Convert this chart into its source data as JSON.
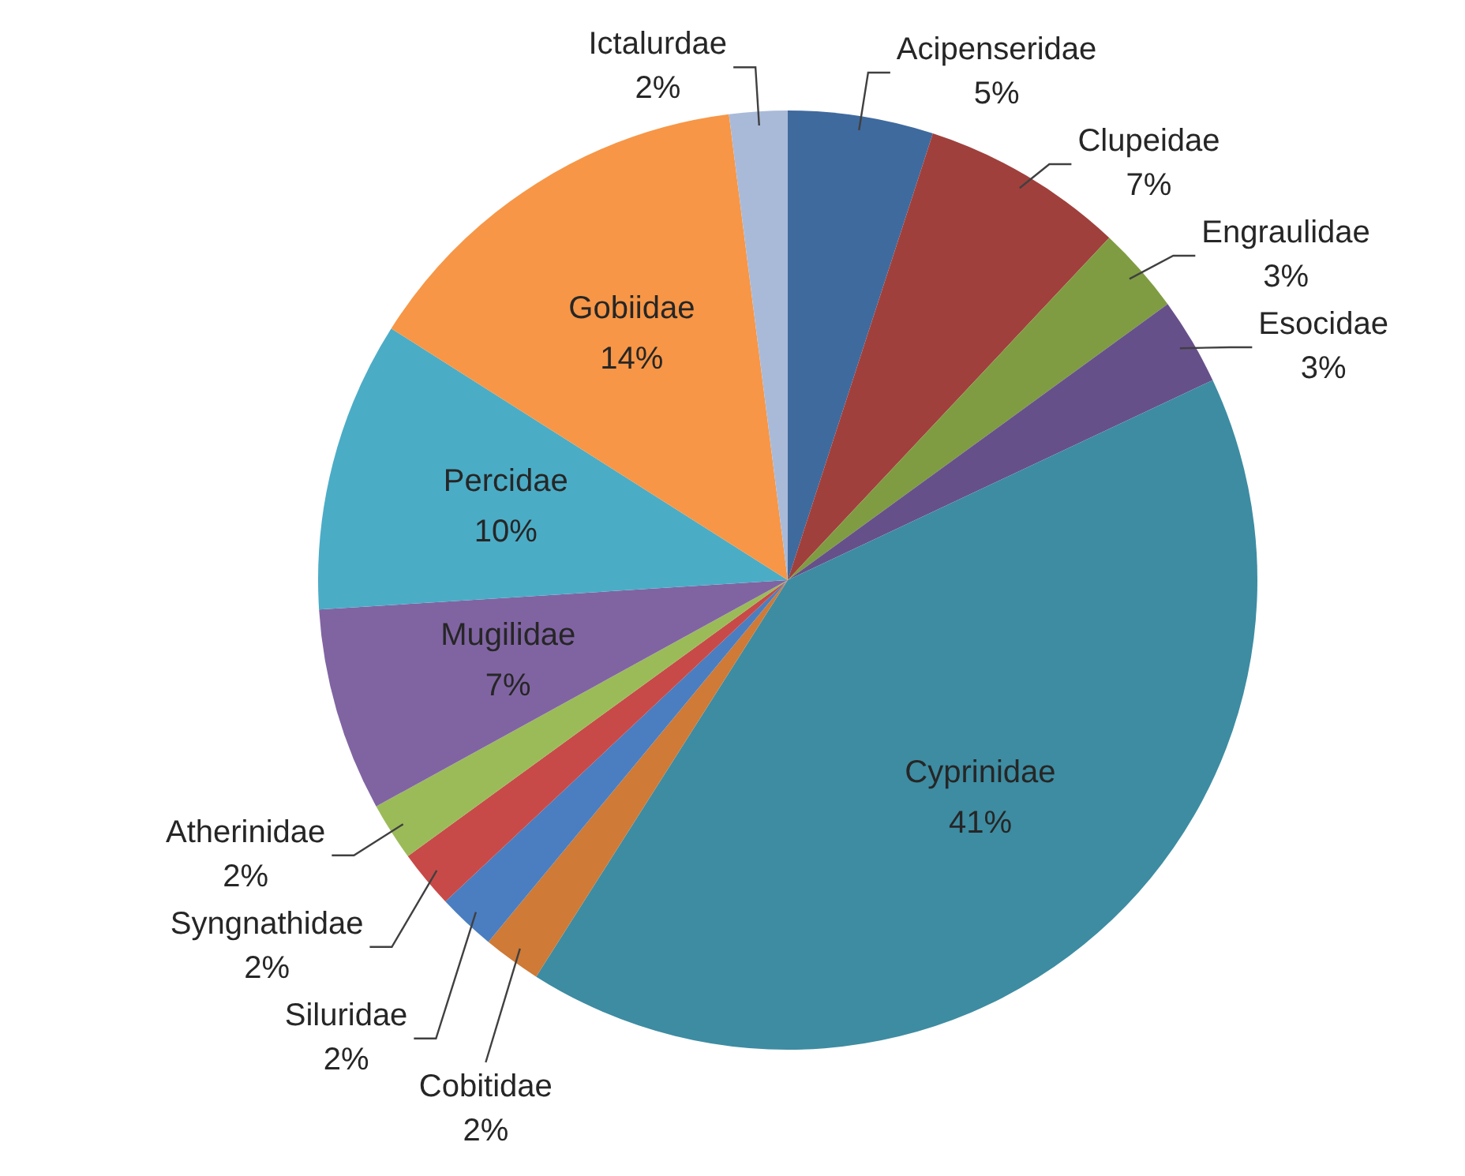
{
  "chart_data": {
    "type": "pie",
    "categories": [
      "Acipenseridae",
      "Clupeidae",
      "Engraulidae",
      "Esocidae",
      "Cyprinidae",
      "Cobitidae",
      "Siluridae",
      "Syngnathidae",
      "Atherinidae",
      "Mugilidae",
      "Percidae",
      "Gobiidae",
      "Ictalurdae"
    ],
    "values": [
      5,
      7,
      3,
      3,
      41,
      2,
      2,
      2,
      2,
      7,
      10,
      14,
      2
    ],
    "value_labels": [
      "5%",
      "7%",
      "3%",
      "3%",
      "41%",
      "2%",
      "2%",
      "2%",
      "2%",
      "7%",
      "10%",
      "14%",
      "2%"
    ],
    "colors": [
      "#3f6a9e",
      "#a0403c",
      "#7f9c42",
      "#66508a",
      "#3d8ca2",
      "#cf7a36",
      "#4a7ec0",
      "#c84a48",
      "#9bbb59",
      "#8064a2",
      "#4bacc6",
      "#f79646",
      "#a9bad9"
    ],
    "legend": false
  }
}
